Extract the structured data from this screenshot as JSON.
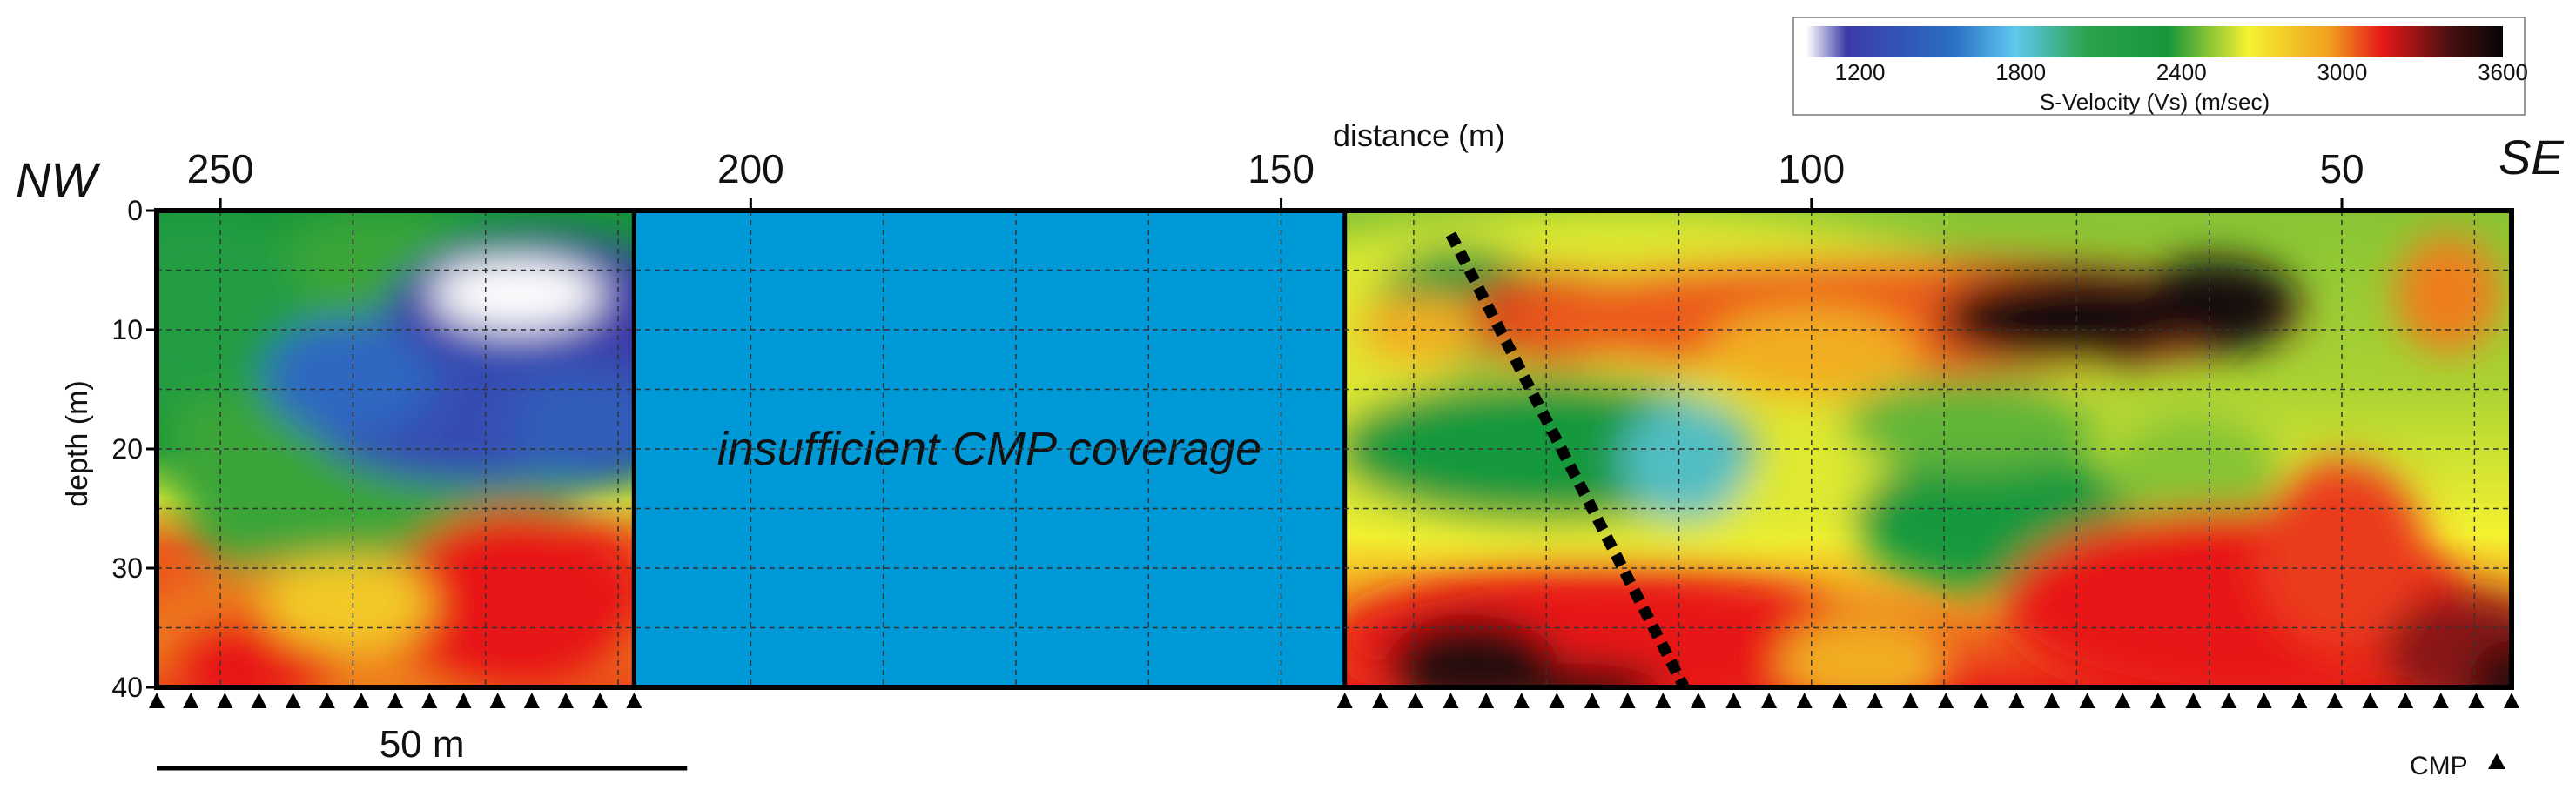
{
  "chart_data": {
    "type": "heatmap",
    "title": "",
    "colorbar": {
      "label": "S-Velocity (Vs) (m/sec)",
      "ticks": [
        "1200",
        "1800",
        "2400",
        "3000",
        "3600"
      ],
      "range": [
        1000,
        3600
      ],
      "stops": [
        {
          "v": 1000,
          "color": "#ffffff"
        },
        {
          "v": 1150,
          "color": "#3b3aa8"
        },
        {
          "v": 1550,
          "color": "#2b6fc4"
        },
        {
          "v": 1780,
          "color": "#5ec8ee"
        },
        {
          "v": 2050,
          "color": "#2aa34a"
        },
        {
          "v": 2350,
          "color": "#16963a"
        },
        {
          "v": 2650,
          "color": "#f5f230"
        },
        {
          "v": 2950,
          "color": "#f0a020"
        },
        {
          "v": 3150,
          "color": "#e81818"
        },
        {
          "v": 3400,
          "color": "#4a1010"
        },
        {
          "v": 3600,
          "color": "#050505"
        }
      ]
    },
    "xlabel": "distance (m)",
    "ylabel": "depth (m)",
    "x_ticks": [
      "250",
      "200",
      "150",
      "100",
      "50"
    ],
    "y_ticks": [
      "0",
      "10",
      "20",
      "30",
      "40"
    ],
    "xlim": [
      256,
      34
    ],
    "ylim": [
      0,
      40
    ],
    "left_label": "NW",
    "right_label": "SE",
    "gap": {
      "x_start": 211,
      "x_end": 144,
      "label": "insufficient CMP coverage",
      "color": "#0099d8"
    },
    "fault_line": {
      "x": [
        134,
        112
      ],
      "depth": [
        2,
        40
      ]
    },
    "scale_bar": {
      "label": "50 m",
      "length_m": 50
    },
    "cmp_label": "CMP",
    "cmp_stations": {
      "segments": [
        [
          256,
          211
        ],
        [
          144,
          34
        ]
      ],
      "count": [
        15,
        34
      ]
    },
    "blobs": [
      {
        "x": 235,
        "y": 18,
        "rx": 20,
        "ry": 18,
        "vel": 2400
      },
      {
        "x": 252,
        "y": 8,
        "rx": 10,
        "ry": 8,
        "vel": 2200
      },
      {
        "x": 220,
        "y": 10,
        "rx": 15,
        "ry": 8,
        "vel": 1150
      },
      {
        "x": 226,
        "y": 17,
        "rx": 16,
        "ry": 6,
        "vel": 1300
      },
      {
        "x": 238,
        "y": 14,
        "rx": 8,
        "ry": 5,
        "vel": 1500
      },
      {
        "x": 222,
        "y": 7,
        "rx": 8,
        "ry": 3,
        "vel": 1000
      },
      {
        "x": 215,
        "y": 18,
        "rx": 8,
        "ry": 5,
        "vel": 1400
      },
      {
        "x": 234,
        "y": 36,
        "rx": 25,
        "ry": 7,
        "vel": 3000
      },
      {
        "x": 222,
        "y": 33,
        "rx": 12,
        "ry": 8,
        "vel": 3150
      },
      {
        "x": 247,
        "y": 38,
        "rx": 8,
        "ry": 4,
        "vel": 3150
      },
      {
        "x": 238,
        "y": 33,
        "rx": 8,
        "ry": 4,
        "vel": 2800
      },
      {
        "x": 118,
        "y": 14,
        "rx": 45,
        "ry": 14,
        "vel": 2620
      },
      {
        "x": 133,
        "y": 8,
        "rx": 8,
        "ry": 5,
        "vel": 2300
      },
      {
        "x": 124,
        "y": 9,
        "rx": 9,
        "ry": 4,
        "vel": 3200
      },
      {
        "x": 122,
        "y": 8,
        "rx": 4,
        "ry": 2,
        "vel": 3400
      },
      {
        "x": 92,
        "y": 9,
        "rx": 38,
        "ry": 5,
        "vel": 3050
      },
      {
        "x": 75,
        "y": 9,
        "rx": 13,
        "ry": 4,
        "vel": 3550
      },
      {
        "x": 62,
        "y": 8,
        "rx": 8,
        "ry": 4,
        "vel": 3550
      },
      {
        "x": 100,
        "y": 12,
        "rx": 10,
        "ry": 4,
        "vel": 2900
      },
      {
        "x": 40,
        "y": 7,
        "rx": 5,
        "ry": 5,
        "vel": 3000
      },
      {
        "x": 137,
        "y": 10,
        "rx": 6,
        "ry": 3,
        "vel": 2900
      },
      {
        "x": 125,
        "y": 20,
        "rx": 20,
        "ry": 6,
        "vel": 2300
      },
      {
        "x": 112,
        "y": 21,
        "rx": 6,
        "ry": 5,
        "vel": 1850
      },
      {
        "x": 82,
        "y": 26,
        "rx": 14,
        "ry": 6,
        "vel": 2300
      },
      {
        "x": 85,
        "y": 18,
        "rx": 12,
        "ry": 4,
        "vel": 2450
      },
      {
        "x": 64,
        "y": 22,
        "rx": 8,
        "ry": 5,
        "vel": 2500
      },
      {
        "x": 120,
        "y": 36,
        "rx": 25,
        "ry": 6,
        "vel": 3150
      },
      {
        "x": 132,
        "y": 38,
        "rx": 8,
        "ry": 4,
        "vel": 3500
      },
      {
        "x": 122,
        "y": 40,
        "rx": 8,
        "ry": 2,
        "vel": 3550
      },
      {
        "x": 95,
        "y": 38,
        "rx": 8,
        "ry": 4,
        "vel": 2900
      },
      {
        "x": 60,
        "y": 33,
        "rx": 22,
        "ry": 8,
        "vel": 3150
      },
      {
        "x": 50,
        "y": 29,
        "rx": 8,
        "ry": 8,
        "vel": 3100
      },
      {
        "x": 38,
        "y": 37,
        "rx": 8,
        "ry": 5,
        "vel": 3300
      },
      {
        "x": 34,
        "y": 40,
        "rx": 4,
        "ry": 4,
        "vel": 3500
      }
    ],
    "base_bands": {
      "left": [
        {
          "depth": 0,
          "vel": 2350
        },
        {
          "depth": 20,
          "vel": 2300
        },
        {
          "depth": 24,
          "vel": 2600
        },
        {
          "depth": 28,
          "vel": 3050
        },
        {
          "depth": 40,
          "vel": 3100
        }
      ],
      "right": [
        {
          "depth": 0,
          "vel": 2500
        },
        {
          "depth": 15,
          "vel": 2550
        },
        {
          "depth": 27,
          "vel": 2650
        },
        {
          "depth": 31,
          "vel": 2900
        },
        {
          "depth": 40,
          "vel": 3150
        }
      ]
    }
  }
}
